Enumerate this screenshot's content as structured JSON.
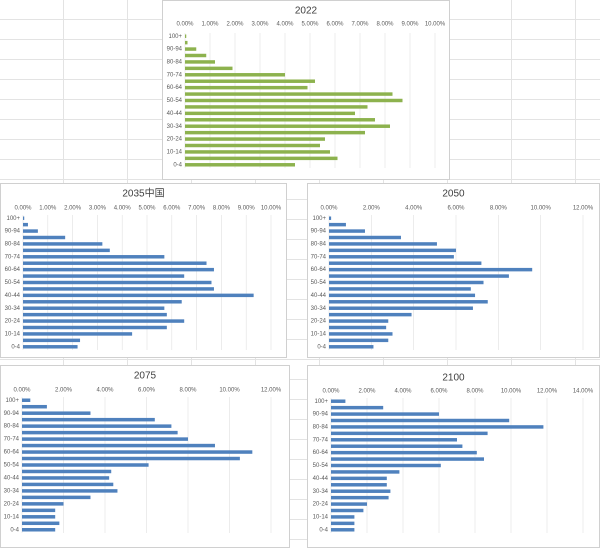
{
  "chart_data": [
    {
      "type": "bar",
      "orientation": "horizontal",
      "title": "2022",
      "color": "#8db24e",
      "grid": true,
      "categories": [
        "0-4",
        null,
        "10-14",
        null,
        "20-24",
        null,
        "30-34",
        null,
        "40-44",
        null,
        "50-54",
        null,
        "60-64",
        null,
        "70-74",
        null,
        "80-84",
        null,
        "90-94",
        null,
        "100+"
      ],
      "values": [
        4.4,
        6.1,
        5.8,
        5.4,
        5.6,
        7.2,
        8.2,
        7.6,
        6.8,
        7.3,
        8.7,
        8.3,
        4.9,
        5.2,
        4.0,
        1.9,
        1.2,
        0.85,
        0.45,
        0.1,
        0.05
      ],
      "xlim": [
        0,
        10
      ],
      "xticks": [
        {
          "value": 0,
          "label": "0.00%"
        },
        {
          "value": 1,
          "label": "1.00%"
        },
        {
          "value": 2,
          "label": "2.00%"
        },
        {
          "value": 3,
          "label": "3.00%"
        },
        {
          "value": 4,
          "label": "4.00%"
        },
        {
          "value": 5,
          "label": "5.00%"
        },
        {
          "value": 6,
          "label": "6.00%"
        },
        {
          "value": 7,
          "label": "7.00%"
        },
        {
          "value": 8,
          "label": "8.00%"
        },
        {
          "value": 9,
          "label": "9.00%"
        },
        {
          "value": 10,
          "label": "10.00%"
        }
      ]
    },
    {
      "type": "bar",
      "orientation": "horizontal",
      "title": "2035中国",
      "color": "#4f81bd",
      "grid": true,
      "categories": [
        "0-4",
        null,
        "10-14",
        null,
        "20-24",
        null,
        "30-34",
        null,
        "40-44",
        null,
        "50-54",
        null,
        "60-64",
        null,
        "70-74",
        null,
        "80-84",
        null,
        "90-94",
        null,
        "100+"
      ],
      "values": [
        2.2,
        2.3,
        4.4,
        5.8,
        6.5,
        5.8,
        5.7,
        6.4,
        9.3,
        7.7,
        7.6,
        6.5,
        7.7,
        7.4,
        5.7,
        3.5,
        3.2,
        1.7,
        0.6,
        0.2,
        0.05
      ],
      "xlim": [
        0,
        10
      ],
      "xticks": [
        {
          "value": 0,
          "label": "0.00%"
        },
        {
          "value": 1,
          "label": "1.00%"
        },
        {
          "value": 2,
          "label": "2.00%"
        },
        {
          "value": 3,
          "label": "3.00%"
        },
        {
          "value": 4,
          "label": "4.00%"
        },
        {
          "value": 5,
          "label": "5.00%"
        },
        {
          "value": 6,
          "label": "6.00%"
        },
        {
          "value": 7,
          "label": "7.00%"
        },
        {
          "value": 8,
          "label": "8.00%"
        },
        {
          "value": 9,
          "label": "9.00%"
        },
        {
          "value": 10,
          "label": "10.00%"
        }
      ]
    },
    {
      "type": "bar",
      "orientation": "horizontal",
      "title": "2050",
      "color": "#4f81bd",
      "grid": true,
      "categories": [
        "0-4",
        null,
        "10-14",
        null,
        "20-24",
        null,
        "30-34",
        null,
        "40-44",
        null,
        "50-54",
        null,
        "60-64",
        null,
        "70-74",
        null,
        "80-84",
        null,
        "90-94",
        null,
        "100+"
      ],
      "values": [
        2.1,
        2.8,
        3.0,
        2.7,
        2.8,
        3.9,
        6.8,
        7.5,
        6.9,
        6.7,
        7.3,
        8.5,
        9.6,
        7.2,
        5.9,
        6.0,
        5.1,
        3.4,
        1.7,
        0.8,
        0.1
      ],
      "xlim": [
        0,
        12
      ],
      "xticks": [
        {
          "value": 0,
          "label": "0.00%"
        },
        {
          "value": 2,
          "label": "2.00%"
        },
        {
          "value": 4,
          "label": "4.00%"
        },
        {
          "value": 6,
          "label": "6.00%"
        },
        {
          "value": 8,
          "label": "8.00%"
        },
        {
          "value": 10,
          "label": "10.00%"
        },
        {
          "value": 12,
          "label": "12.00%"
        }
      ]
    },
    {
      "type": "bar",
      "orientation": "horizontal",
      "title": "2075",
      "color": "#4f81bd",
      "grid": true,
      "categories": [
        "0-4",
        null,
        "10-14",
        null,
        "20-24",
        null,
        "30-34",
        null,
        "40-44",
        null,
        "50-54",
        null,
        "60-64",
        null,
        "70-74",
        null,
        "80-84",
        null,
        "90-94",
        null,
        "100+"
      ],
      "values": [
        1.6,
        1.8,
        1.6,
        1.6,
        2.0,
        3.3,
        4.6,
        4.4,
        4.2,
        4.3,
        6.1,
        10.5,
        11.1,
        9.3,
        8.0,
        7.5,
        7.2,
        6.4,
        3.3,
        1.2,
        0.4
      ],
      "xlim": [
        0,
        12
      ],
      "xticks": [
        {
          "value": 0,
          "label": "0.00%"
        },
        {
          "value": 2,
          "label": "2.00%"
        },
        {
          "value": 4,
          "label": "4.00%"
        },
        {
          "value": 6,
          "label": "6.00%"
        },
        {
          "value": 8,
          "label": "8.00%"
        },
        {
          "value": 10,
          "label": "10.00%"
        },
        {
          "value": 12,
          "label": "12.00%"
        }
      ]
    },
    {
      "type": "bar",
      "orientation": "horizontal",
      "title": "2100",
      "color": "#4f81bd",
      "grid": true,
      "categories": [
        "0-4",
        null,
        "10-14",
        null,
        "20-24",
        null,
        "30-34",
        null,
        "40-44",
        null,
        "50-54",
        null,
        "60-64",
        null,
        "70-74",
        null,
        "80-84",
        null,
        "90-94",
        null,
        "100+"
      ],
      "values": [
        1.3,
        1.3,
        1.3,
        1.8,
        2.0,
        3.2,
        3.3,
        3.1,
        3.1,
        3.8,
        6.1,
        8.5,
        8.1,
        7.3,
        7.0,
        8.7,
        11.8,
        9.9,
        6.0,
        2.9,
        0.8
      ],
      "xlim": [
        0,
        14
      ],
      "xticks": [
        {
          "value": 0,
          "label": "0.00%"
        },
        {
          "value": 2,
          "label": "2.00%"
        },
        {
          "value": 4,
          "label": "4.00%"
        },
        {
          "value": 6,
          "label": "6.00%"
        },
        {
          "value": 8,
          "label": "8.00%"
        },
        {
          "value": 10,
          "label": "10.00%"
        },
        {
          "value": 12,
          "label": "12.00%"
        },
        {
          "value": 14,
          "label": "14.00%"
        }
      ]
    }
  ]
}
